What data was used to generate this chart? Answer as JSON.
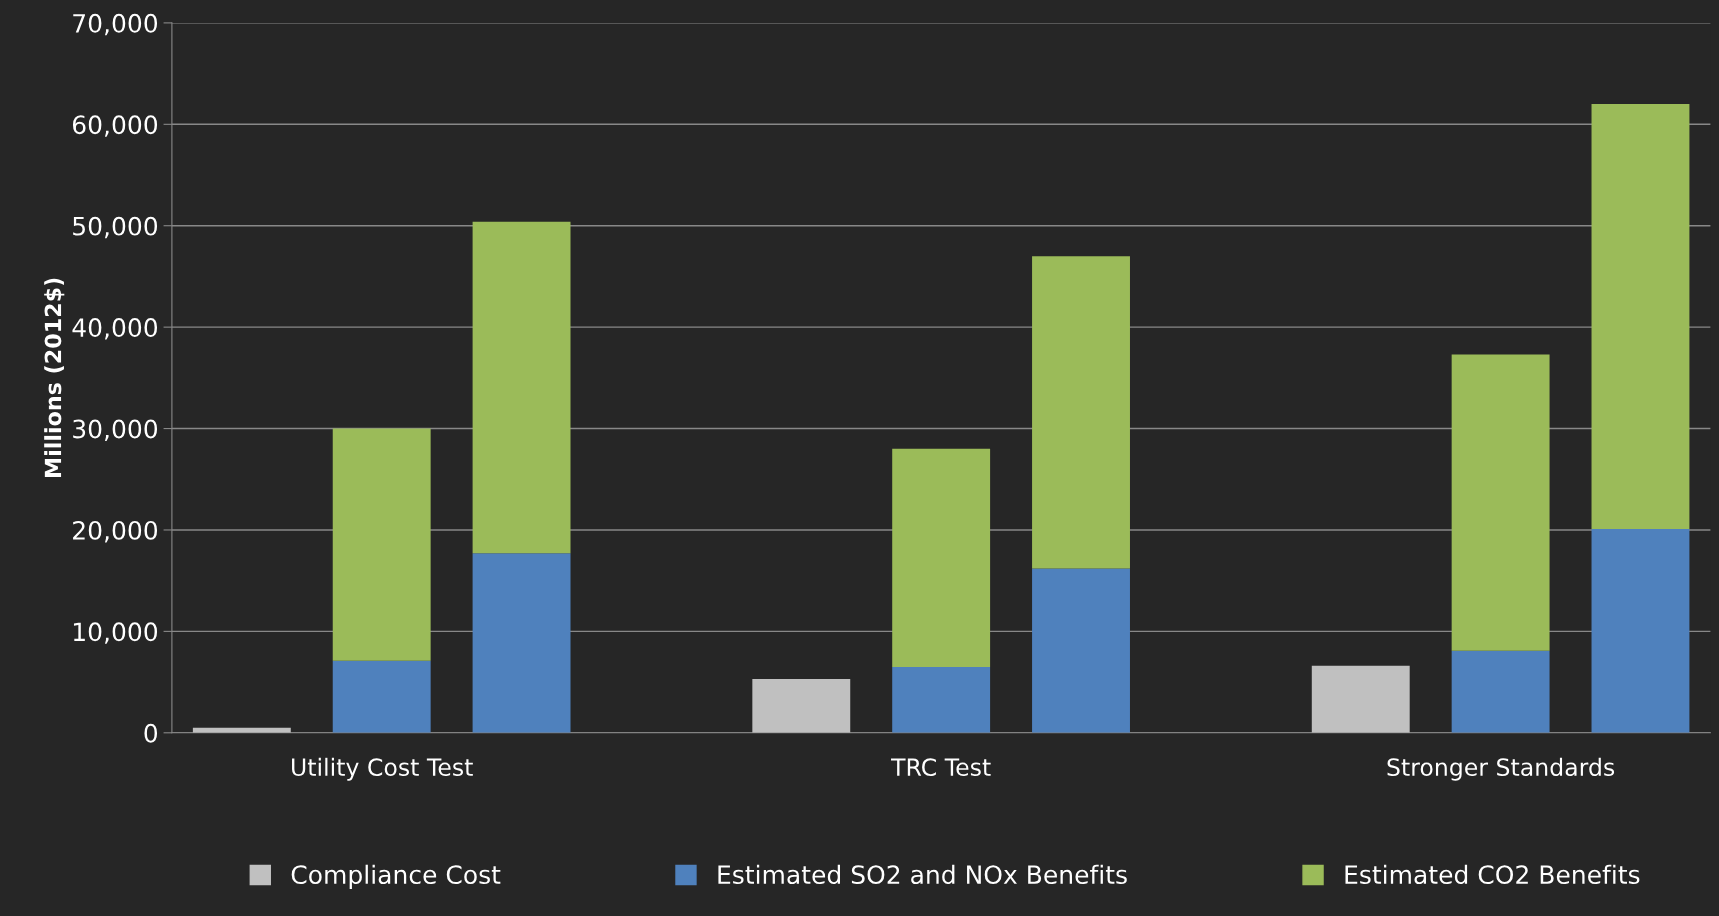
{
  "chart_data": {
    "type": "bar",
    "stacked": true,
    "ylabel": "Millions (2012$)",
    "categories": [
      null,
      "Utility Cost Test",
      null,
      null,
      null,
      "TRC Test",
      null,
      null,
      null,
      "Stronger Standards",
      null
    ],
    "series": [
      {
        "name": "Compliance Cost",
        "color": "#c0c0c0",
        "values": [
          500,
          null,
          null,
          null,
          5300,
          null,
          null,
          null,
          6600,
          null,
          null
        ]
      },
      {
        "name": "Estimated SO2 and NOx Benefits",
        "color": "#4f81bd",
        "values": [
          null,
          7100,
          17700,
          null,
          null,
          6500,
          16200,
          null,
          null,
          8100,
          20100
        ]
      },
      {
        "name": "Estimated CO2 Benefits",
        "color": "#9bbb59",
        "values": [
          null,
          22900,
          32700,
          null,
          null,
          21500,
          30800,
          null,
          null,
          29200,
          41900
        ]
      }
    ],
    "ylim": [
      0,
      70000
    ],
    "yticks": [
      {
        "value": 0,
        "label": "0"
      },
      {
        "value": 10000,
        "label": "10,000"
      },
      {
        "value": 20000,
        "label": "20,000"
      },
      {
        "value": 30000,
        "label": "30,000"
      },
      {
        "value": 40000,
        "label": "40,000"
      },
      {
        "value": 50000,
        "label": "50,000"
      },
      {
        "value": 60000,
        "label": "60,000"
      },
      {
        "value": 70000,
        "label": "70,000"
      }
    ],
    "grid": "y",
    "legend": "bottom"
  }
}
